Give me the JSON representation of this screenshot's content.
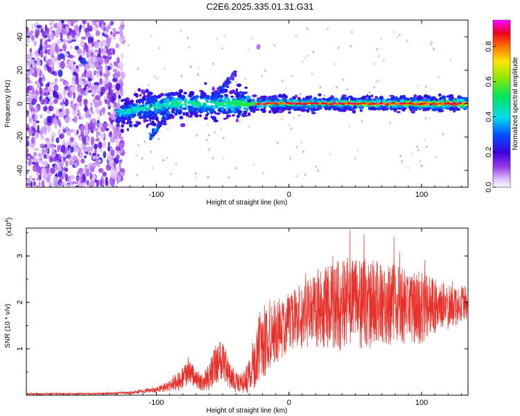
{
  "figure_title": "C2E6.2025.335.01.31.G31",
  "colors": {
    "snr_line": "#e8302a",
    "axis": "#000000",
    "background": "#ffffff"
  },
  "chart_data": [
    {
      "type": "heatmap",
      "title": "C2E6.2025.335.01.31.G31",
      "xlabel": "Height of straight line (km)",
      "ylabel": "Frequency (Hz)",
      "xlim": [
        -198,
        135
      ],
      "ylim": [
        -50,
        50
      ],
      "xticks": [
        -100,
        0,
        100
      ],
      "xtick_labels": [
        "-100",
        "0",
        "100"
      ],
      "yticks": [
        -40,
        -20,
        0,
        20,
        40
      ],
      "ytick_labels": [
        "-40",
        "-20",
        "0",
        "20",
        "40"
      ],
      "colorbar": {
        "label": "Normalized spectral amplitude",
        "range": [
          0,
          0.95
        ],
        "ticks": [
          0.0,
          0.2,
          0.4,
          0.6,
          0.8
        ],
        "tick_labels": [
          "0.0",
          "0.2",
          "0.4",
          "0.6",
          "0.8"
        ],
        "colormap": "rainbow (white-purple-blue-cyan-green-yellow-red-magenta)"
      },
      "features": [
        {
          "name": "broadband-noise",
          "x_range": [
            -198,
            -125
          ],
          "freq_range": [
            -50,
            50
          ],
          "amplitude": 0.15
        },
        {
          "name": "carrier-line",
          "x_range": [
            -130,
            135
          ],
          "freq": 0,
          "amplitude_range": [
            0.2,
            0.95
          ]
        },
        {
          "name": "branch-a",
          "x_range": [
            -50,
            -40
          ],
          "freq_range": [
            8,
            18
          ]
        },
        {
          "name": "branch-b",
          "x_range": [
            -100,
            -95
          ],
          "freq_range": [
            -20,
            -12
          ]
        },
        {
          "name": "blob",
          "x": -23,
          "freq": 34
        }
      ]
    },
    {
      "type": "line",
      "title": "",
      "xlabel": "Height of straight line (km)",
      "ylabel": "SNR (10 * v/v)",
      "y_scale_note_base": "(x10",
      "y_scale_note_exp": "4",
      "y_scale_note_close": ")",
      "xlim": [
        -198,
        135
      ],
      "ylim": [
        0,
        3.6
      ],
      "xticks": [
        -100,
        0,
        100
      ],
      "xtick_labels": [
        "-100",
        "0",
        "100"
      ],
      "yticks": [
        1,
        2,
        3
      ],
      "ytick_labels": [
        "1",
        "2",
        "3"
      ],
      "series": [
        {
          "name": "SNR",
          "envelope": {
            "x": [
              -198,
              -150,
              -120,
              -100,
              -90,
              -80,
              -75,
              -70,
              -65,
              -60,
              -55,
              -50,
              -45,
              -40,
              -35,
              -30,
              -25,
              -20,
              -15,
              -10,
              -5,
              0,
              10,
              20,
              30,
              40,
              50,
              60,
              70,
              80,
              90,
              100,
              110,
              120,
              130,
              135
            ],
            "mean": [
              0.03,
              0.03,
              0.05,
              0.12,
              0.2,
              0.35,
              0.5,
              0.35,
              0.25,
              0.4,
              0.7,
              0.85,
              0.4,
              0.3,
              0.25,
              0.4,
              0.8,
              1.1,
              1.3,
              1.35,
              1.45,
              1.6,
              1.7,
              1.8,
              1.9,
              1.95,
              2.0,
              2.0,
              1.95,
              1.95,
              1.9,
              1.9,
              1.9,
              1.9,
              1.95,
              1.95
            ],
            "amp": [
              0.02,
              0.02,
              0.03,
              0.06,
              0.12,
              0.25,
              0.3,
              0.2,
              0.2,
              0.3,
              0.45,
              0.5,
              0.3,
              0.25,
              0.2,
              0.4,
              0.6,
              0.8,
              0.8,
              0.7,
              0.7,
              0.6,
              0.7,
              0.8,
              0.9,
              1.0,
              1.0,
              1.0,
              0.9,
              0.9,
              0.8,
              0.8,
              0.6,
              0.5,
              0.4,
              0.4
            ]
          },
          "peak": {
            "x": 46,
            "y": 3.55
          }
        }
      ]
    }
  ]
}
